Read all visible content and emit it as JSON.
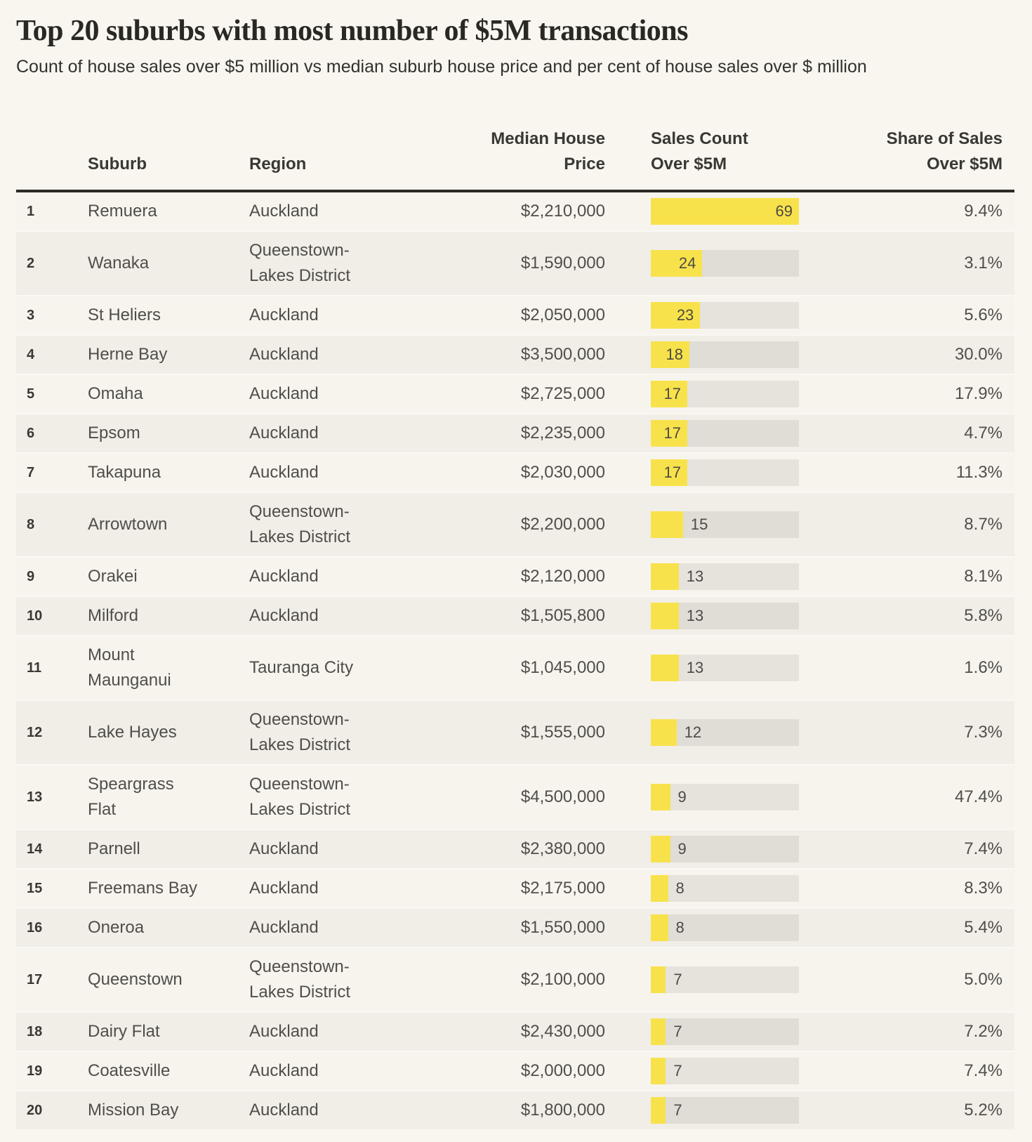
{
  "title": "Top 20 suburbs with most number of $5M transactions",
  "subtitle": "Count of house sales over $5 million vs median suburb house price and per cent of house sales over $ million",
  "headers": {
    "suburb": "Suburb",
    "region": "Region",
    "price": "Median House\nPrice",
    "sales": "Sales Count\nOver $5M",
    "share": "Share of Sales\nOver $5M"
  },
  "colors": {
    "bar_fill": "#f8e24b",
    "bar_track": "#e2e0d9",
    "page_background": "#f9f6f0",
    "row_light": "#f7f4ee",
    "row_dark": "#f0eee7",
    "header_rule": "#2b2a25"
  },
  "chart_data": {
    "type": "table",
    "title": "Top 20 suburbs with most number of $5M transactions",
    "subtitle": "Count of house sales over $5 million vs median suburb house price and per cent of house sales over $ million",
    "columns": [
      "Rank",
      "Suburb",
      "Region",
      "Median House Price",
      "Sales Count Over $5M",
      "Share of Sales Over $5M"
    ],
    "embedded_bar": {
      "column": "Sales Count Over $5M",
      "axis_min": 0,
      "axis_max": 69
    },
    "rows": [
      {
        "rank": "1",
        "suburb": "Remuera",
        "region": "Auckland",
        "price": "$2,210,000",
        "sales_count": 69,
        "share": "9.4%"
      },
      {
        "rank": "2",
        "suburb": "Wanaka",
        "region": "Queenstown-\nLakes District",
        "price": "$1,590,000",
        "sales_count": 24,
        "share": "3.1%"
      },
      {
        "rank": "3",
        "suburb": "St Heliers",
        "region": "Auckland",
        "price": "$2,050,000",
        "sales_count": 23,
        "share": "5.6%"
      },
      {
        "rank": "4",
        "suburb": "Herne Bay",
        "region": "Auckland",
        "price": "$3,500,000",
        "sales_count": 18,
        "share": "30.0%"
      },
      {
        "rank": "5",
        "suburb": "Omaha",
        "region": "Auckland",
        "price": "$2,725,000",
        "sales_count": 17,
        "share": "17.9%"
      },
      {
        "rank": "6",
        "suburb": "Epsom",
        "region": "Auckland",
        "price": "$2,235,000",
        "sales_count": 17,
        "share": "4.7%"
      },
      {
        "rank": "7",
        "suburb": "Takapuna",
        "region": "Auckland",
        "price": "$2,030,000",
        "sales_count": 17,
        "share": "11.3%"
      },
      {
        "rank": "8",
        "suburb": "Arrowtown",
        "region": "Queenstown-\nLakes District",
        "price": "$2,200,000",
        "sales_count": 15,
        "share": "8.7%"
      },
      {
        "rank": "9",
        "suburb": "Orakei",
        "region": "Auckland",
        "price": "$2,120,000",
        "sales_count": 13,
        "share": "8.1%"
      },
      {
        "rank": "10",
        "suburb": "Milford",
        "region": "Auckland",
        "price": "$1,505,800",
        "sales_count": 13,
        "share": "5.8%"
      },
      {
        "rank": "11",
        "suburb": "Mount\nMaunganui",
        "region": "Tauranga City",
        "price": "$1,045,000",
        "sales_count": 13,
        "share": "1.6%"
      },
      {
        "rank": "12",
        "suburb": "Lake Hayes",
        "region": "Queenstown-\nLakes District",
        "price": "$1,555,000",
        "sales_count": 12,
        "share": "7.3%"
      },
      {
        "rank": "13",
        "suburb": "Speargrass\nFlat",
        "region": "Queenstown-\nLakes District",
        "price": "$4,500,000",
        "sales_count": 9,
        "share": "47.4%"
      },
      {
        "rank": "14",
        "suburb": "Parnell",
        "region": "Auckland",
        "price": "$2,380,000",
        "sales_count": 9,
        "share": "7.4%"
      },
      {
        "rank": "15",
        "suburb": "Freemans Bay",
        "region": "Auckland",
        "price": "$2,175,000",
        "sales_count": 8,
        "share": "8.3%"
      },
      {
        "rank": "16",
        "suburb": "Oneroa",
        "region": "Auckland",
        "price": "$1,550,000",
        "sales_count": 8,
        "share": "5.4%"
      },
      {
        "rank": "17",
        "suburb": "Queenstown",
        "region": "Queenstown-\nLakes District",
        "price": "$2,100,000",
        "sales_count": 7,
        "share": "5.0%"
      },
      {
        "rank": "18",
        "suburb": "Dairy Flat",
        "region": "Auckland",
        "price": "$2,430,000",
        "sales_count": 7,
        "share": "7.2%"
      },
      {
        "rank": "19",
        "suburb": "Coatesville",
        "region": "Auckland",
        "price": "$2,000,000",
        "sales_count": 7,
        "share": "7.4%"
      },
      {
        "rank": "20",
        "suburb": "Mission Bay",
        "region": "Auckland",
        "price": "$1,800,000",
        "sales_count": 7,
        "share": "5.2%"
      }
    ]
  }
}
